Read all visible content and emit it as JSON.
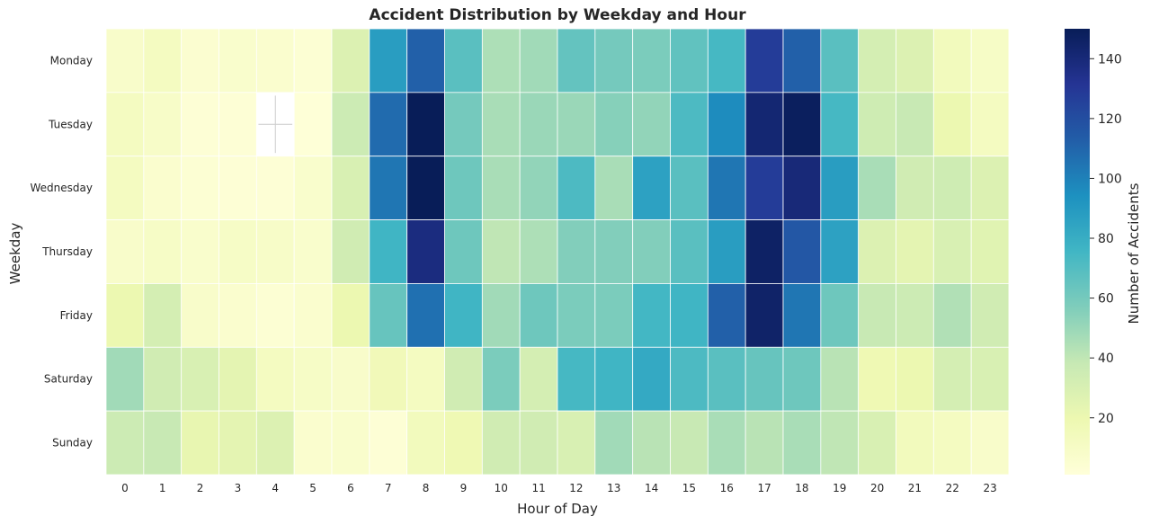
{
  "chart_data": {
    "type": "heatmap",
    "title": "Accident Distribution by Weekday and Hour",
    "xlabel": "Hour of Day",
    "ylabel": "Weekday",
    "colorbar_label": "Number of Accidents",
    "colormap": "YlGnBu",
    "vmin": 1,
    "vmax": 150,
    "colorbar_ticks": [
      20,
      40,
      60,
      80,
      100,
      120,
      140
    ],
    "x": [
      "0",
      "1",
      "2",
      "3",
      "4",
      "5",
      "6",
      "7",
      "8",
      "9",
      "10",
      "11",
      "12",
      "13",
      "14",
      "15",
      "16",
      "17",
      "18",
      "19",
      "20",
      "21",
      "22",
      "23"
    ],
    "y": [
      "Monday",
      "Tuesday",
      "Wednesday",
      "Thursday",
      "Friday",
      "Saturday",
      "Sunday"
    ],
    "values": [
      [
        8,
        12,
        5,
        7,
        6,
        4,
        28,
        88,
        112,
        68,
        45,
        48,
        65,
        60,
        58,
        66,
        74,
        128,
        112,
        68,
        32,
        28,
        14,
        10
      ],
      [
        12,
        9,
        3,
        3,
        null,
        2,
        36,
        108,
        150,
        60,
        46,
        50,
        50,
        55,
        52,
        72,
        96,
        142,
        148,
        74,
        35,
        38,
        20,
        12
      ],
      [
        12,
        6,
        4,
        3,
        3,
        7,
        30,
        104,
        150,
        62,
        46,
        52,
        72,
        46,
        86,
        68,
        104,
        128,
        140,
        88,
        46,
        34,
        35,
        28
      ],
      [
        8,
        10,
        7,
        10,
        9,
        7,
        34,
        76,
        138,
        62,
        40,
        45,
        56,
        56,
        56,
        68,
        88,
        146,
        116,
        86,
        28,
        24,
        30,
        26
      ],
      [
        20,
        32,
        8,
        6,
        4,
        6,
        20,
        64,
        106,
        76,
        48,
        62,
        58,
        58,
        75,
        76,
        112,
        145,
        104,
        62,
        38,
        36,
        44,
        34
      ],
      [
        48,
        34,
        30,
        24,
        12,
        10,
        8,
        16,
        12,
        34,
        58,
        32,
        74,
        76,
        82,
        72,
        68,
        64,
        62,
        42,
        18,
        20,
        32,
        30
      ],
      [
        36,
        38,
        22,
        24,
        28,
        6,
        7,
        3,
        14,
        18,
        34,
        34,
        30,
        48,
        42,
        38,
        46,
        42,
        46,
        40,
        30,
        14,
        12,
        8
      ]
    ]
  }
}
